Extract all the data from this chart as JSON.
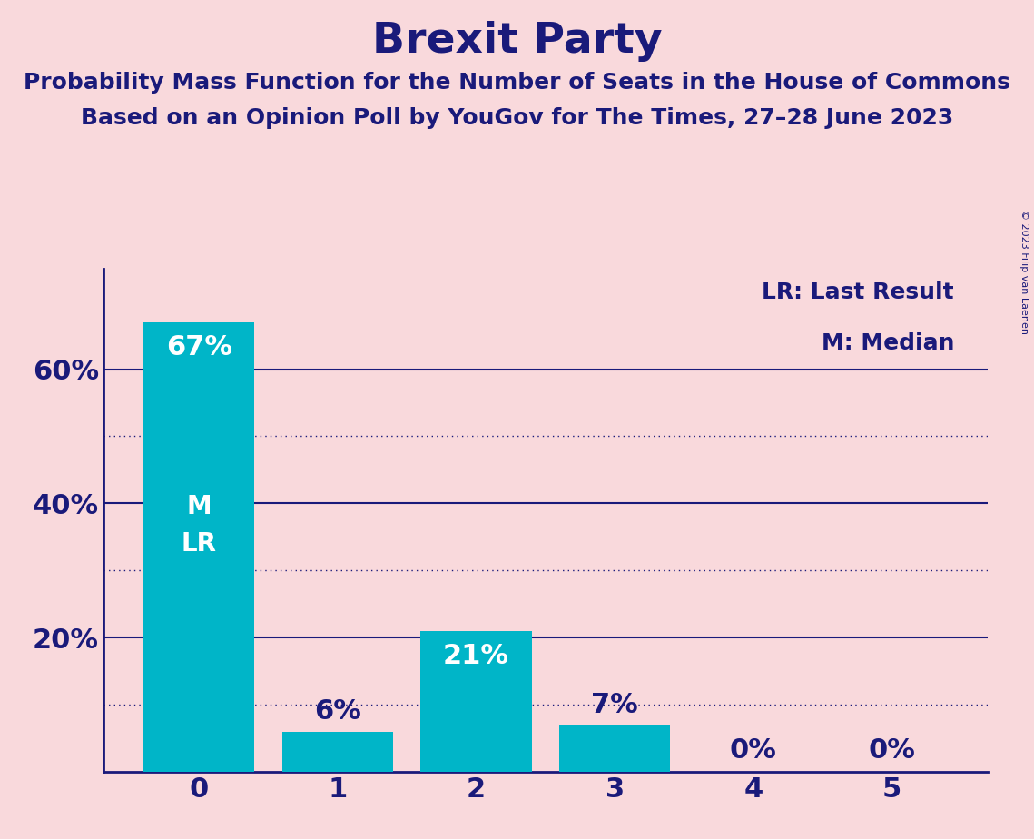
{
  "title": "Brexit Party",
  "subtitle1": "Probability Mass Function for the Number of Seats in the House of Commons",
  "subtitle2": "Based on an Opinion Poll by YouGov for The Times, 27–28 June 2023",
  "copyright": "© 2023 Filip van Laenen",
  "categories": [
    0,
    1,
    2,
    3,
    4,
    5
  ],
  "values": [
    0.67,
    0.06,
    0.21,
    0.07,
    0.0,
    0.0
  ],
  "bar_color": "#00B5C8",
  "bg_color": "#F9D9DC",
  "title_color": "#1a1a7a",
  "axis_color": "#1a1a7a",
  "bar_label_color_outside": "#1a1a7a",
  "bar_label_color_inside": "#ffffff",
  "grid_solid_color": "#1a1a7a",
  "grid_dotted_color": "#1a1a7a",
  "solid_gridlines": [
    0.2,
    0.4,
    0.6
  ],
  "dotted_gridlines": [
    0.1,
    0.3,
    0.5
  ],
  "ytick_labels": [
    "20%",
    "40%",
    "60%"
  ],
  "ytick_values": [
    0.2,
    0.4,
    0.6
  ],
  "annotation_line1": "LR: Last Result",
  "annotation_line2": "M: Median",
  "title_fontsize": 34,
  "subtitle_fontsize": 18,
  "bar_label_fontsize": 22,
  "tick_fontsize": 22,
  "annotation_fontsize": 18,
  "ml_label_fontsize": 20
}
